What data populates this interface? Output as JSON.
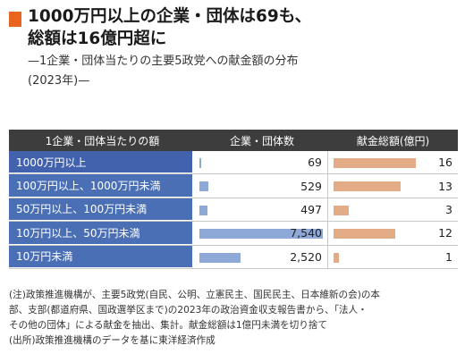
{
  "title": {
    "line1": "1000万円以上の企業・団体は69も、",
    "line2": "総額は16億円超に",
    "sub1": "—1企業・団体当たりの主要5政党への献金額の分布",
    "sub2": "(2023年)—"
  },
  "table": {
    "headers": [
      "1企業・団体当たりの額",
      "企業・団体数",
      "献金総額(億円)"
    ]
  },
  "chart_data": {
    "type": "table",
    "categories": [
      "1000万円以上",
      "100万円以上、1000万円未満",
      "50万円以上、100万円未満",
      "10万円以上、50万円未満",
      "10万円未満"
    ],
    "series": [
      {
        "name": "企業・団体数",
        "values": [
          69,
          529,
          497,
          7540,
          2520
        ]
      },
      {
        "name": "献金総額(億円)",
        "values": [
          16,
          13,
          3,
          12,
          1
        ]
      }
    ],
    "value_labels": [
      [
        "69",
        "529",
        "497",
        "7,540",
        "2,520"
      ],
      [
        "16",
        "13",
        "3",
        "12",
        "1"
      ]
    ]
  },
  "colors": {
    "accent": "#e8641f",
    "header_bg": "#3d3d3d",
    "label_bg": "#4a6fb5",
    "count_bar": "#8ea8d8",
    "amount_bar": "#e3ac86"
  },
  "notes": [
    "(注)政策推進機構が、主要5政党(自民、公明、立憲民主、国民民主、日本維新の会)の本",
    "部、支部(都道府県、国政選挙区まで)の2023年の政治資金収支報告書から、「法人・",
    "その他の団体」による献金を抽出、集計。献金総額は1億円未満を切り捨て",
    "(出所)政策推進機構のデータを基に東洋経済作成"
  ]
}
